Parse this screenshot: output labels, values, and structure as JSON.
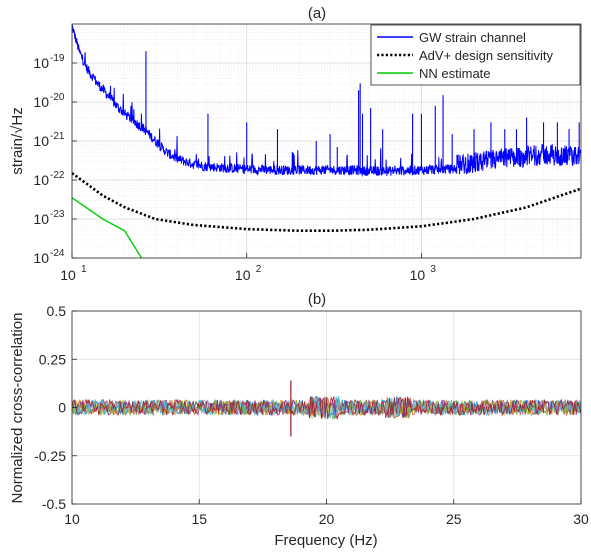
{
  "chart_data": [
    {
      "type": "line",
      "title": "(a)",
      "ylabel": "strain/√Hz",
      "xlabel": "",
      "x_scale": "log",
      "y_scale": "log",
      "xlim": [
        10,
        8192
      ],
      "ylim": [
        1e-24,
        1e-18
      ],
      "x_tick_labels": [
        {
          "value": 10,
          "label": "10",
          "sup": "1"
        },
        {
          "value": 100,
          "label": "10",
          "sup": "2"
        },
        {
          "value": 1000,
          "label": "10",
          "sup": "3"
        }
      ],
      "y_tick_labels": [
        {
          "value": 1e-19,
          "label": "10",
          "sup": "-19"
        },
        {
          "value": 1e-20,
          "label": "10",
          "sup": "-20"
        },
        {
          "value": 1e-21,
          "label": "10",
          "sup": "-21"
        },
        {
          "value": 1e-22,
          "label": "10",
          "sup": "-22"
        },
        {
          "value": 1e-23,
          "label": "10",
          "sup": "-23"
        },
        {
          "value": 1e-24,
          "label": "10",
          "sup": "-24"
        }
      ],
      "grid": true,
      "legend_position": "top-right",
      "series": [
        {
          "name": "GW strain channel",
          "color": "#0000ff",
          "style": "solid",
          "points": [
            [
              10,
              9e-19
            ],
            [
              11,
              2e-19
            ],
            [
              12,
              8e-20
            ],
            [
              14,
              3e-20
            ],
            [
              16,
              1.5e-20
            ],
            [
              18,
              8e-21
            ],
            [
              20,
              5e-21
            ],
            [
              23,
              3e-21
            ],
            [
              26,
              2e-21
            ],
            [
              30,
              1e-21
            ],
            [
              35,
              5e-22
            ],
            [
              40,
              3.5e-22
            ],
            [
              50,
              2.5e-22
            ],
            [
              60,
              2.2e-22
            ],
            [
              80,
              2e-22
            ],
            [
              100,
              1.9e-22
            ],
            [
              150,
              1.8e-22
            ],
            [
              200,
              1.8e-22
            ],
            [
              300,
              1.8e-22
            ],
            [
              400,
              1.8e-22
            ],
            [
              500,
              1.7e-22
            ],
            [
              700,
              1.7e-22
            ],
            [
              1000,
              1.8e-22
            ],
            [
              1500,
              1.9e-22
            ],
            [
              2000,
              2.1e-22
            ],
            [
              3000,
              2.8e-22
            ],
            [
              5000,
              3.5e-22
            ],
            [
              8192,
              3e-22
            ]
          ],
          "peaks": [
            [
              26.5,
              2e-19
            ],
            [
              60,
              5e-21
            ],
            [
              100,
              3e-21
            ],
            [
              150,
              2e-21
            ],
            [
              250,
              1e-21
            ],
            [
              300,
              1.5e-21
            ],
            [
              330,
              7e-22
            ],
            [
              437,
              2e-20
            ],
            [
              446,
              3e-20
            ],
            [
              460,
              5e-21
            ],
            [
              512,
              7e-21
            ],
            [
              600,
              2e-21
            ],
            [
              890,
              5e-21
            ],
            [
              1000,
              5e-21
            ],
            [
              1200,
              8e-21
            ],
            [
              1330,
              1.5e-20
            ],
            [
              1500,
              1.5e-21
            ],
            [
              2000,
              2e-21
            ],
            [
              2500,
              3e-21
            ],
            [
              3000,
              2e-21
            ],
            [
              3500,
              2e-21
            ],
            [
              4000,
              4e-21
            ],
            [
              5000,
              3e-21
            ],
            [
              6000,
              3e-21
            ],
            [
              7000,
              2e-21
            ],
            [
              8000,
              3e-21
            ]
          ]
        },
        {
          "name": "AdV+ design sensitivity",
          "color": "#000000",
          "style": "dotted",
          "points": [
            [
              10,
              1.5e-22
            ],
            [
              15,
              4e-23
            ],
            [
              20,
              2e-23
            ],
            [
              30,
              1e-23
            ],
            [
              50,
              7e-24
            ],
            [
              100,
              5.5e-24
            ],
            [
              200,
              5e-24
            ],
            [
              300,
              5e-24
            ],
            [
              500,
              5.3e-24
            ],
            [
              1000,
              6.5e-24
            ],
            [
              2000,
              1e-23
            ],
            [
              4000,
              2e-23
            ],
            [
              8192,
              6e-23
            ]
          ]
        },
        {
          "name": "NN estimate",
          "color": "#00cc00",
          "style": "solid",
          "points": [
            [
              10,
              3.5e-23
            ],
            [
              15,
              1e-23
            ],
            [
              20,
              5e-24
            ],
            [
              25,
              1e-24
            ]
          ]
        }
      ]
    },
    {
      "type": "line",
      "title": "(b)",
      "xlabel": "Frequency (Hz)",
      "ylabel": "Normalized cross-correlation",
      "xlim": [
        10,
        30
      ],
      "ylim": [
        -0.5,
        0.5
      ],
      "x_ticks": [
        10,
        15,
        20,
        25,
        30
      ],
      "x_tick_labels": [
        "10",
        "15",
        "20",
        "25",
        "30"
      ],
      "y_ticks": [
        0.5,
        0.25,
        0,
        -0.25,
        -0.5
      ],
      "y_tick_labels": [
        "0.5",
        "0.25",
        "0",
        "-0.25",
        "-0.5"
      ],
      "grid": true,
      "description_series": {
        "band_amplitude": 0.04,
        "colors": [
          "#0072bd",
          "#d95319",
          "#edb120",
          "#7e2f8e",
          "#77ac30",
          "#4dbeee",
          "#a2142f"
        ],
        "spike": {
          "x": 18.6,
          "ymin": -0.15,
          "ymax": 0.14
        }
      }
    }
  ]
}
